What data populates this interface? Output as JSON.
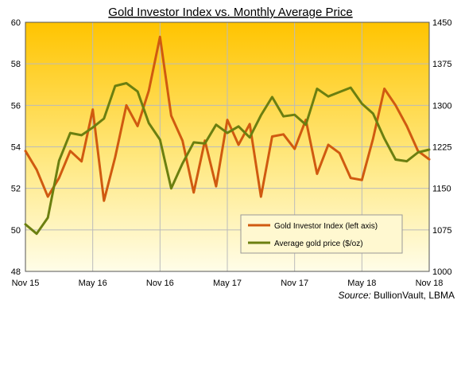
{
  "chart_data": {
    "type": "line",
    "title": "Gold Investor  Index  vs.  Monthly  Average Price",
    "source_label": "Source:",
    "source_value": " BullionVault, LBMA",
    "x_tick_labels": [
      "Nov 15",
      "May 16",
      "Nov 16",
      "May 17",
      "Nov 17",
      "May 18",
      "Nov 18"
    ],
    "x_tick_months": [
      0,
      6,
      12,
      18,
      24,
      30,
      36
    ],
    "months_span": [
      0,
      36
    ],
    "left_axis": {
      "min": 48,
      "max": 60,
      "ticks": [
        48,
        50,
        52,
        54,
        56,
        58,
        60
      ]
    },
    "right_axis": {
      "min": 1000,
      "max": 1450,
      "ticks": [
        1000,
        1075,
        1150,
        1225,
        1300,
        1375,
        1450
      ]
    },
    "grid": true,
    "legend_position": "center-right",
    "series": [
      {
        "name": "Gold Investor Index (left axis)",
        "axis": "left",
        "color": "#d05a10",
        "values": [
          53.8,
          52.9,
          51.6,
          52.5,
          53.8,
          53.3,
          55.8,
          51.4,
          53.5,
          56.0,
          55.0,
          56.7,
          59.3,
          55.5,
          54.3,
          51.8,
          54.3,
          52.1,
          55.3,
          54.1,
          55.1,
          51.6,
          54.5,
          54.6,
          53.9,
          55.3,
          52.7,
          54.1,
          53.7,
          52.5,
          52.4,
          54.4,
          56.8,
          56.0,
          55.0,
          53.8,
          53.4
        ]
      },
      {
        "name": "Average gold price ($/oz)",
        "axis": "right",
        "color": "#6b7f10",
        "values": [
          1085,
          1068,
          1097,
          1200,
          1250,
          1246,
          1260,
          1276,
          1335,
          1340,
          1325,
          1268,
          1238,
          1150,
          1195,
          1233,
          1231,
          1265,
          1250,
          1262,
          1242,
          1282,
          1315,
          1280,
          1283,
          1265,
          1330,
          1316,
          1324,
          1332,
          1303,
          1285,
          1240,
          1202,
          1199,
          1215,
          1220
        ]
      }
    ]
  }
}
